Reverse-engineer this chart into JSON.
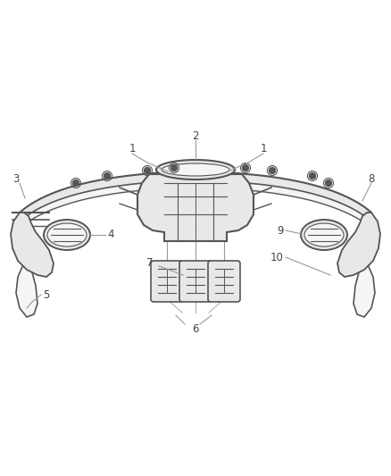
{
  "background_color": "#ffffff",
  "line_color": "#555555",
  "line_color_light": "#888888",
  "label_color": "#444444",
  "label_line_color": "#999999",
  "fill_light": "#f5f5f5",
  "fill_mid": "#e8e8e8",
  "fill_dark": "#d8d8d8",
  "figsize": [
    4.38,
    5.33
  ],
  "dpi": 100
}
